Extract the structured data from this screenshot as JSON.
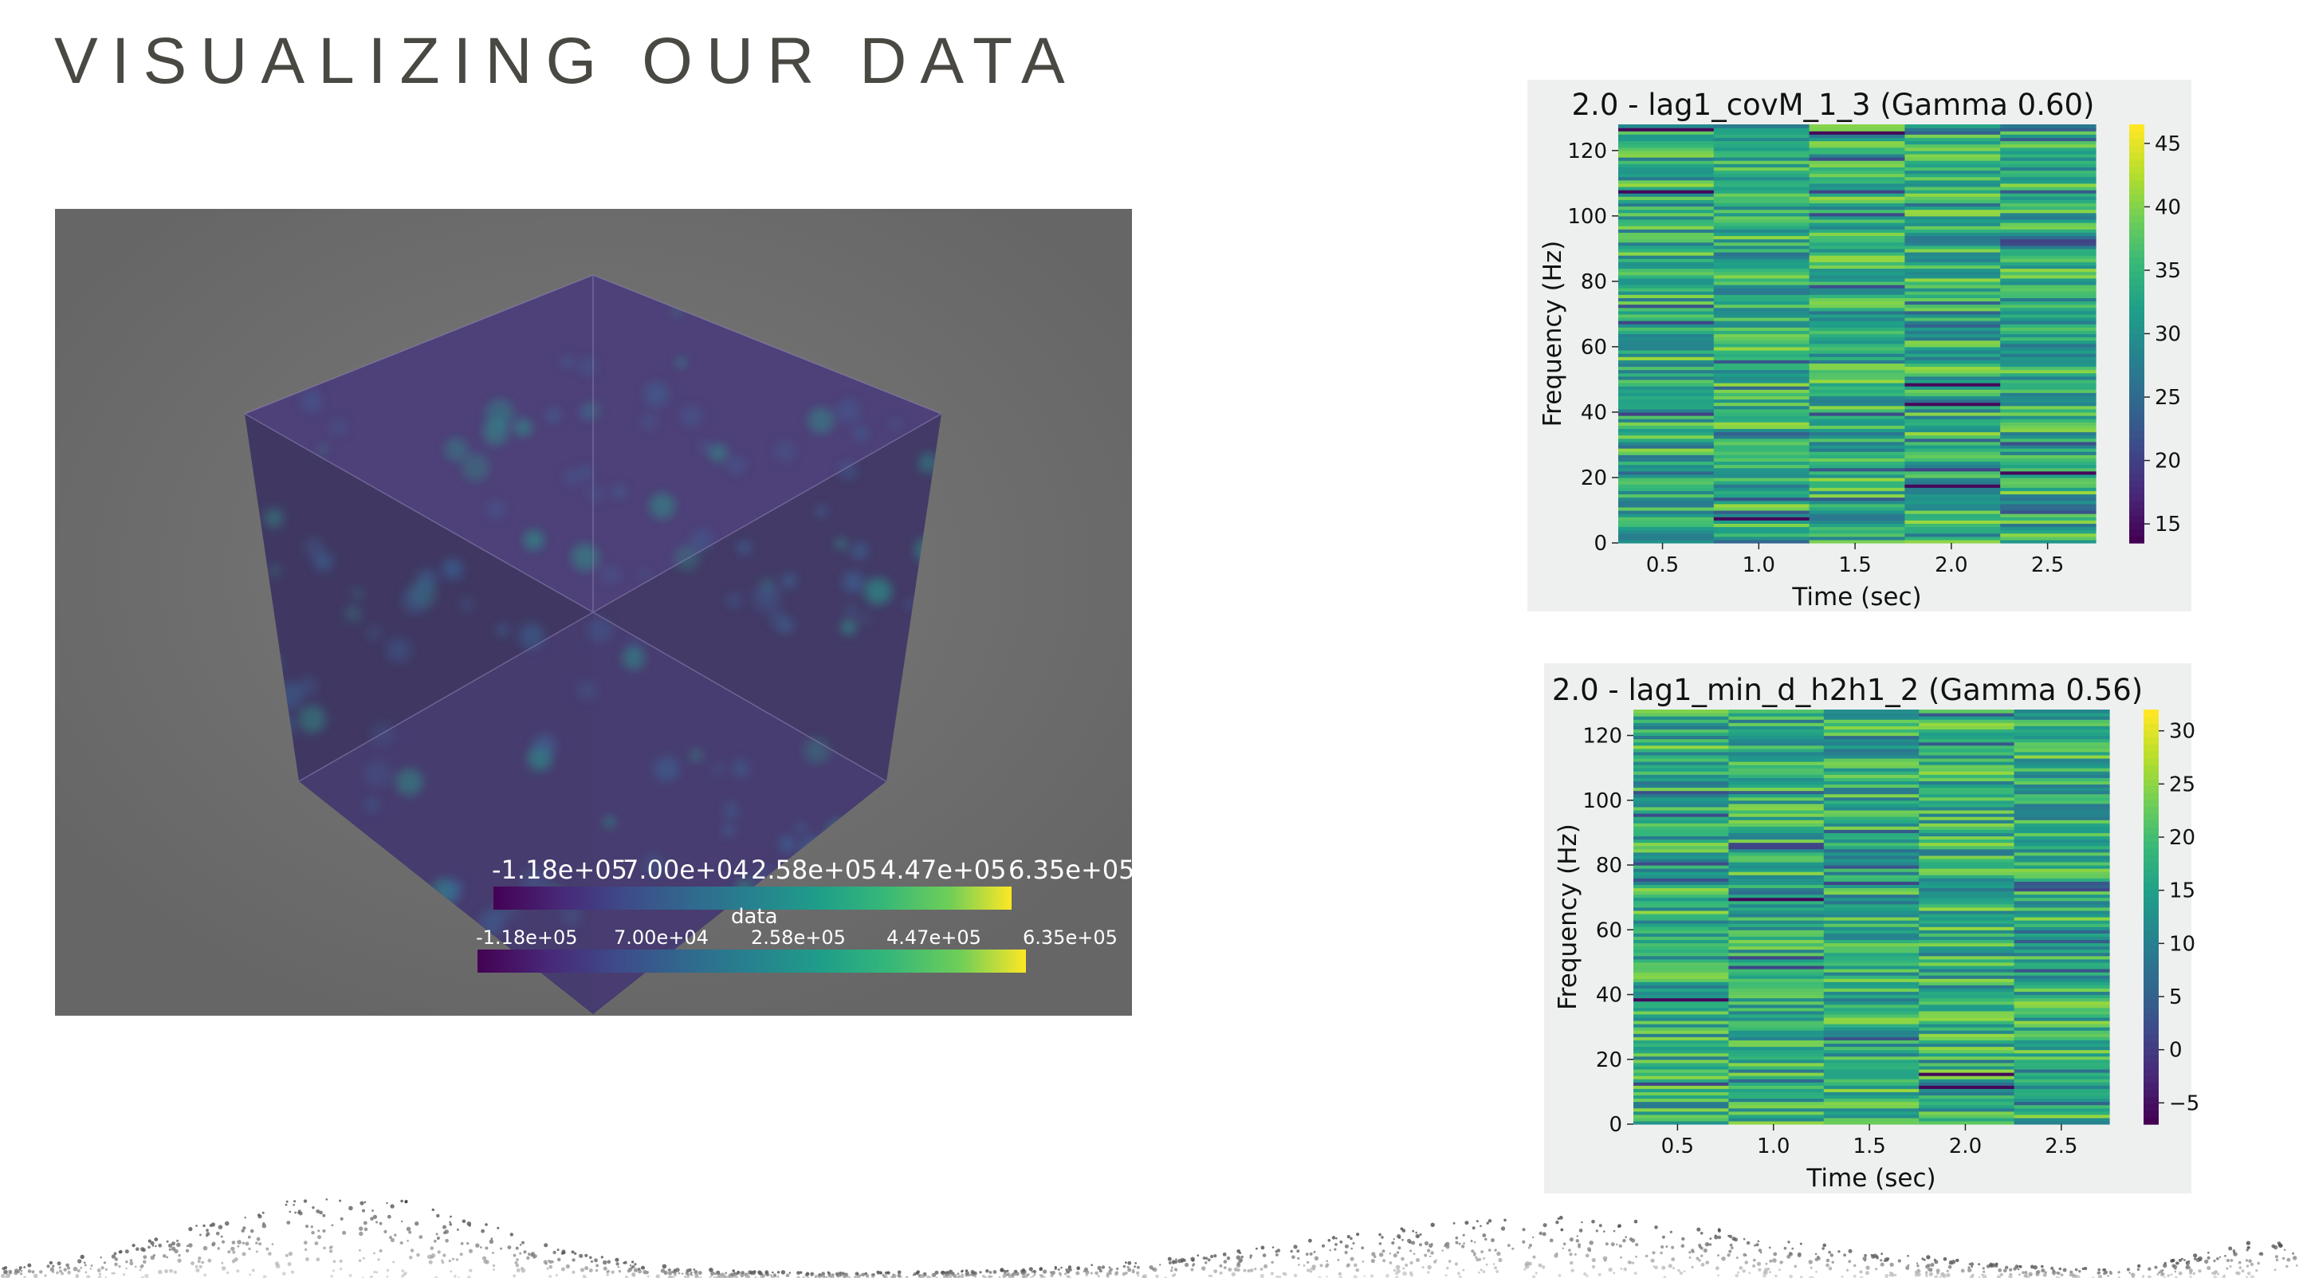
{
  "slide": {
    "title": "VISUALIZING OUR DATA"
  },
  "volume_render": {
    "scalar_bar_top": {
      "ticks": [
        "-1.18e+05",
        "7.00e+04",
        "2.58e+05",
        "4.47e+05",
        "6.35e+05"
      ]
    },
    "scalar_bar_bottom": {
      "title": "data",
      "ticks": [
        "-1.18e+05",
        "7.00e+04",
        "2.58e+05",
        "4.47e+05",
        "6.35e+05"
      ]
    },
    "colormap": "viridis"
  },
  "chart_data": [
    {
      "type": "heatmap",
      "title": "2.0 - lag1_covM_1_3 (Gamma 0.60)",
      "xlabel": "Time (sec)",
      "ylabel": "Frequency (Hz)",
      "x_ticks": [
        "0.5",
        "1.0",
        "1.5",
        "2.0",
        "2.5"
      ],
      "y_ticks": [
        "0",
        "20",
        "40",
        "60",
        "80",
        "100",
        "120"
      ],
      "colorbar_ticks": [
        "15",
        "20",
        "25",
        "30",
        "35",
        "40",
        "45"
      ],
      "xlim": [
        0.27,
        2.75
      ],
      "ylim": [
        0,
        128
      ],
      "clim": [
        13.5,
        46.5
      ],
      "colormap": "viridis",
      "time_columns": 5,
      "frequency_bins": 128
    },
    {
      "type": "heatmap",
      "title": "2.0 - lag1_min_d_h2h1_2 (Gamma 0.56)",
      "xlabel": "Time (sec)",
      "ylabel": "Frequency (Hz)",
      "x_ticks": [
        "0.5",
        "1.0",
        "1.5",
        "2.0",
        "2.5"
      ],
      "y_ticks": [
        "0",
        "20",
        "40",
        "60",
        "80",
        "100",
        "120"
      ],
      "colorbar_ticks": [
        "30",
        "25",
        "20",
        "15",
        "10",
        "5",
        "0",
        "−5"
      ],
      "xlim": [
        0.27,
        2.75
      ],
      "ylim": [
        0,
        128
      ],
      "clim": [
        -7,
        32
      ],
      "colormap": "viridis",
      "time_columns": 5,
      "frequency_bins": 128
    }
  ]
}
